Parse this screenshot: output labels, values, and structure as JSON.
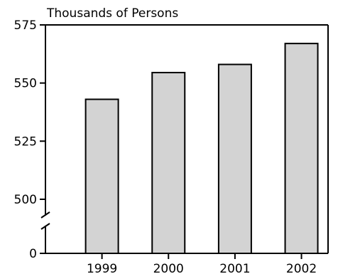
{
  "chart_data": {
    "type": "bar",
    "title": "",
    "ylabel": "Thousands of Persons",
    "xlabel": "",
    "categories": [
      "1999",
      "2000",
      "2001",
      "2002"
    ],
    "values": [
      543,
      554.5,
      558,
      567
    ],
    "ylim": [
      500,
      575
    ],
    "y_axis_break": true,
    "y_ticks": [
      575,
      550,
      525,
      500
    ],
    "y_baseline_label": "0",
    "grid": false,
    "legend": "none",
    "bar_color": "#d3d3d3",
    "bar_outline": "#000000"
  }
}
